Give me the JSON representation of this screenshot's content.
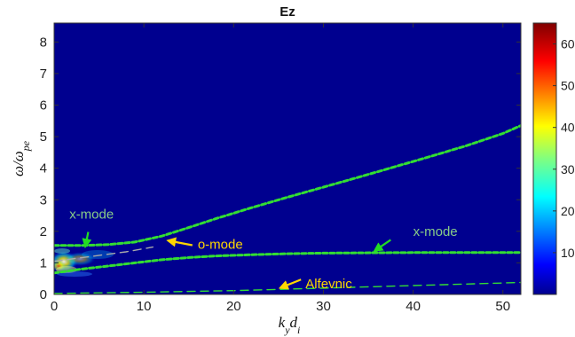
{
  "chart_data": {
    "type": "heatmap",
    "title": "Ez",
    "xlabel": "k_y d_i",
    "ylabel": "ω/ω_pe",
    "xlim": [
      0,
      52
    ],
    "ylim": [
      0,
      8.6
    ],
    "x_ticks": [
      0,
      10,
      20,
      30,
      40,
      50
    ],
    "y_ticks": [
      0,
      1,
      2,
      3,
      4,
      5,
      6,
      7,
      8
    ],
    "colorbar": {
      "colormap": "jet",
      "range": [
        0,
        65
      ],
      "ticks": [
        10,
        20,
        30,
        40,
        50,
        60
      ]
    },
    "background_color": "#00008f",
    "series": [
      {
        "style": "dashed",
        "color": "#33dd33",
        "x": [
          0,
          3,
          6,
          9,
          12,
          15,
          18,
          22,
          26,
          30,
          34,
          38,
          42,
          46,
          50,
          52
        ],
        "y": [
          1.55,
          1.55,
          1.58,
          1.66,
          1.85,
          2.12,
          2.4,
          2.75,
          3.08,
          3.4,
          3.72,
          4.05,
          4.38,
          4.72,
          5.1,
          5.35
        ]
      },
      {
        "style": "dashed",
        "color": "#33dd33",
        "x": [
          0,
          3,
          6,
          9,
          12,
          15,
          18,
          22,
          26,
          30,
          36,
          42,
          48,
          52
        ],
        "y": [
          0.68,
          0.8,
          0.9,
          1.0,
          1.1,
          1.17,
          1.22,
          1.26,
          1.29,
          1.31,
          1.32,
          1.33,
          1.33,
          1.33
        ]
      },
      {
        "style": "dashed-thin",
        "color": "#33dd33",
        "x": [
          0,
          5,
          10,
          20,
          30,
          40,
          52
        ],
        "y": [
          0.03,
          0.05,
          0.07,
          0.12,
          0.2,
          0.28,
          0.38
        ]
      },
      {
        "style": "dashed-thin",
        "color": "#aaaaaa",
        "x": [
          0,
          4,
          8,
          11
        ],
        "y": [
          1.05,
          1.2,
          1.35,
          1.5
        ]
      }
    ],
    "annotations": [
      {
        "text": "x-mode",
        "color": "#88cc88",
        "x": 1.7,
        "y": 2.4,
        "arrow_from": [
          3.8,
          1.98
        ],
        "arrow_to": [
          3.5,
          1.55
        ]
      },
      {
        "text": "o-mode",
        "color": "#ffd700",
        "x": 16,
        "y": 1.45,
        "arrow_from": [
          15.4,
          1.56
        ],
        "arrow_to": [
          12.8,
          1.7
        ]
      },
      {
        "text": "x-mode",
        "color": "#88cc88",
        "x": 40,
        "y": 1.85,
        "arrow_from": [
          37.5,
          1.73
        ],
        "arrow_to": [
          35.8,
          1.4
        ]
      },
      {
        "text": "Alfevnic",
        "color": "#ffd700",
        "x": 28,
        "y": 0.2,
        "arrow_from": [
          27.5,
          0.47
        ],
        "arrow_to": [
          25.3,
          0.22
        ]
      }
    ]
  }
}
